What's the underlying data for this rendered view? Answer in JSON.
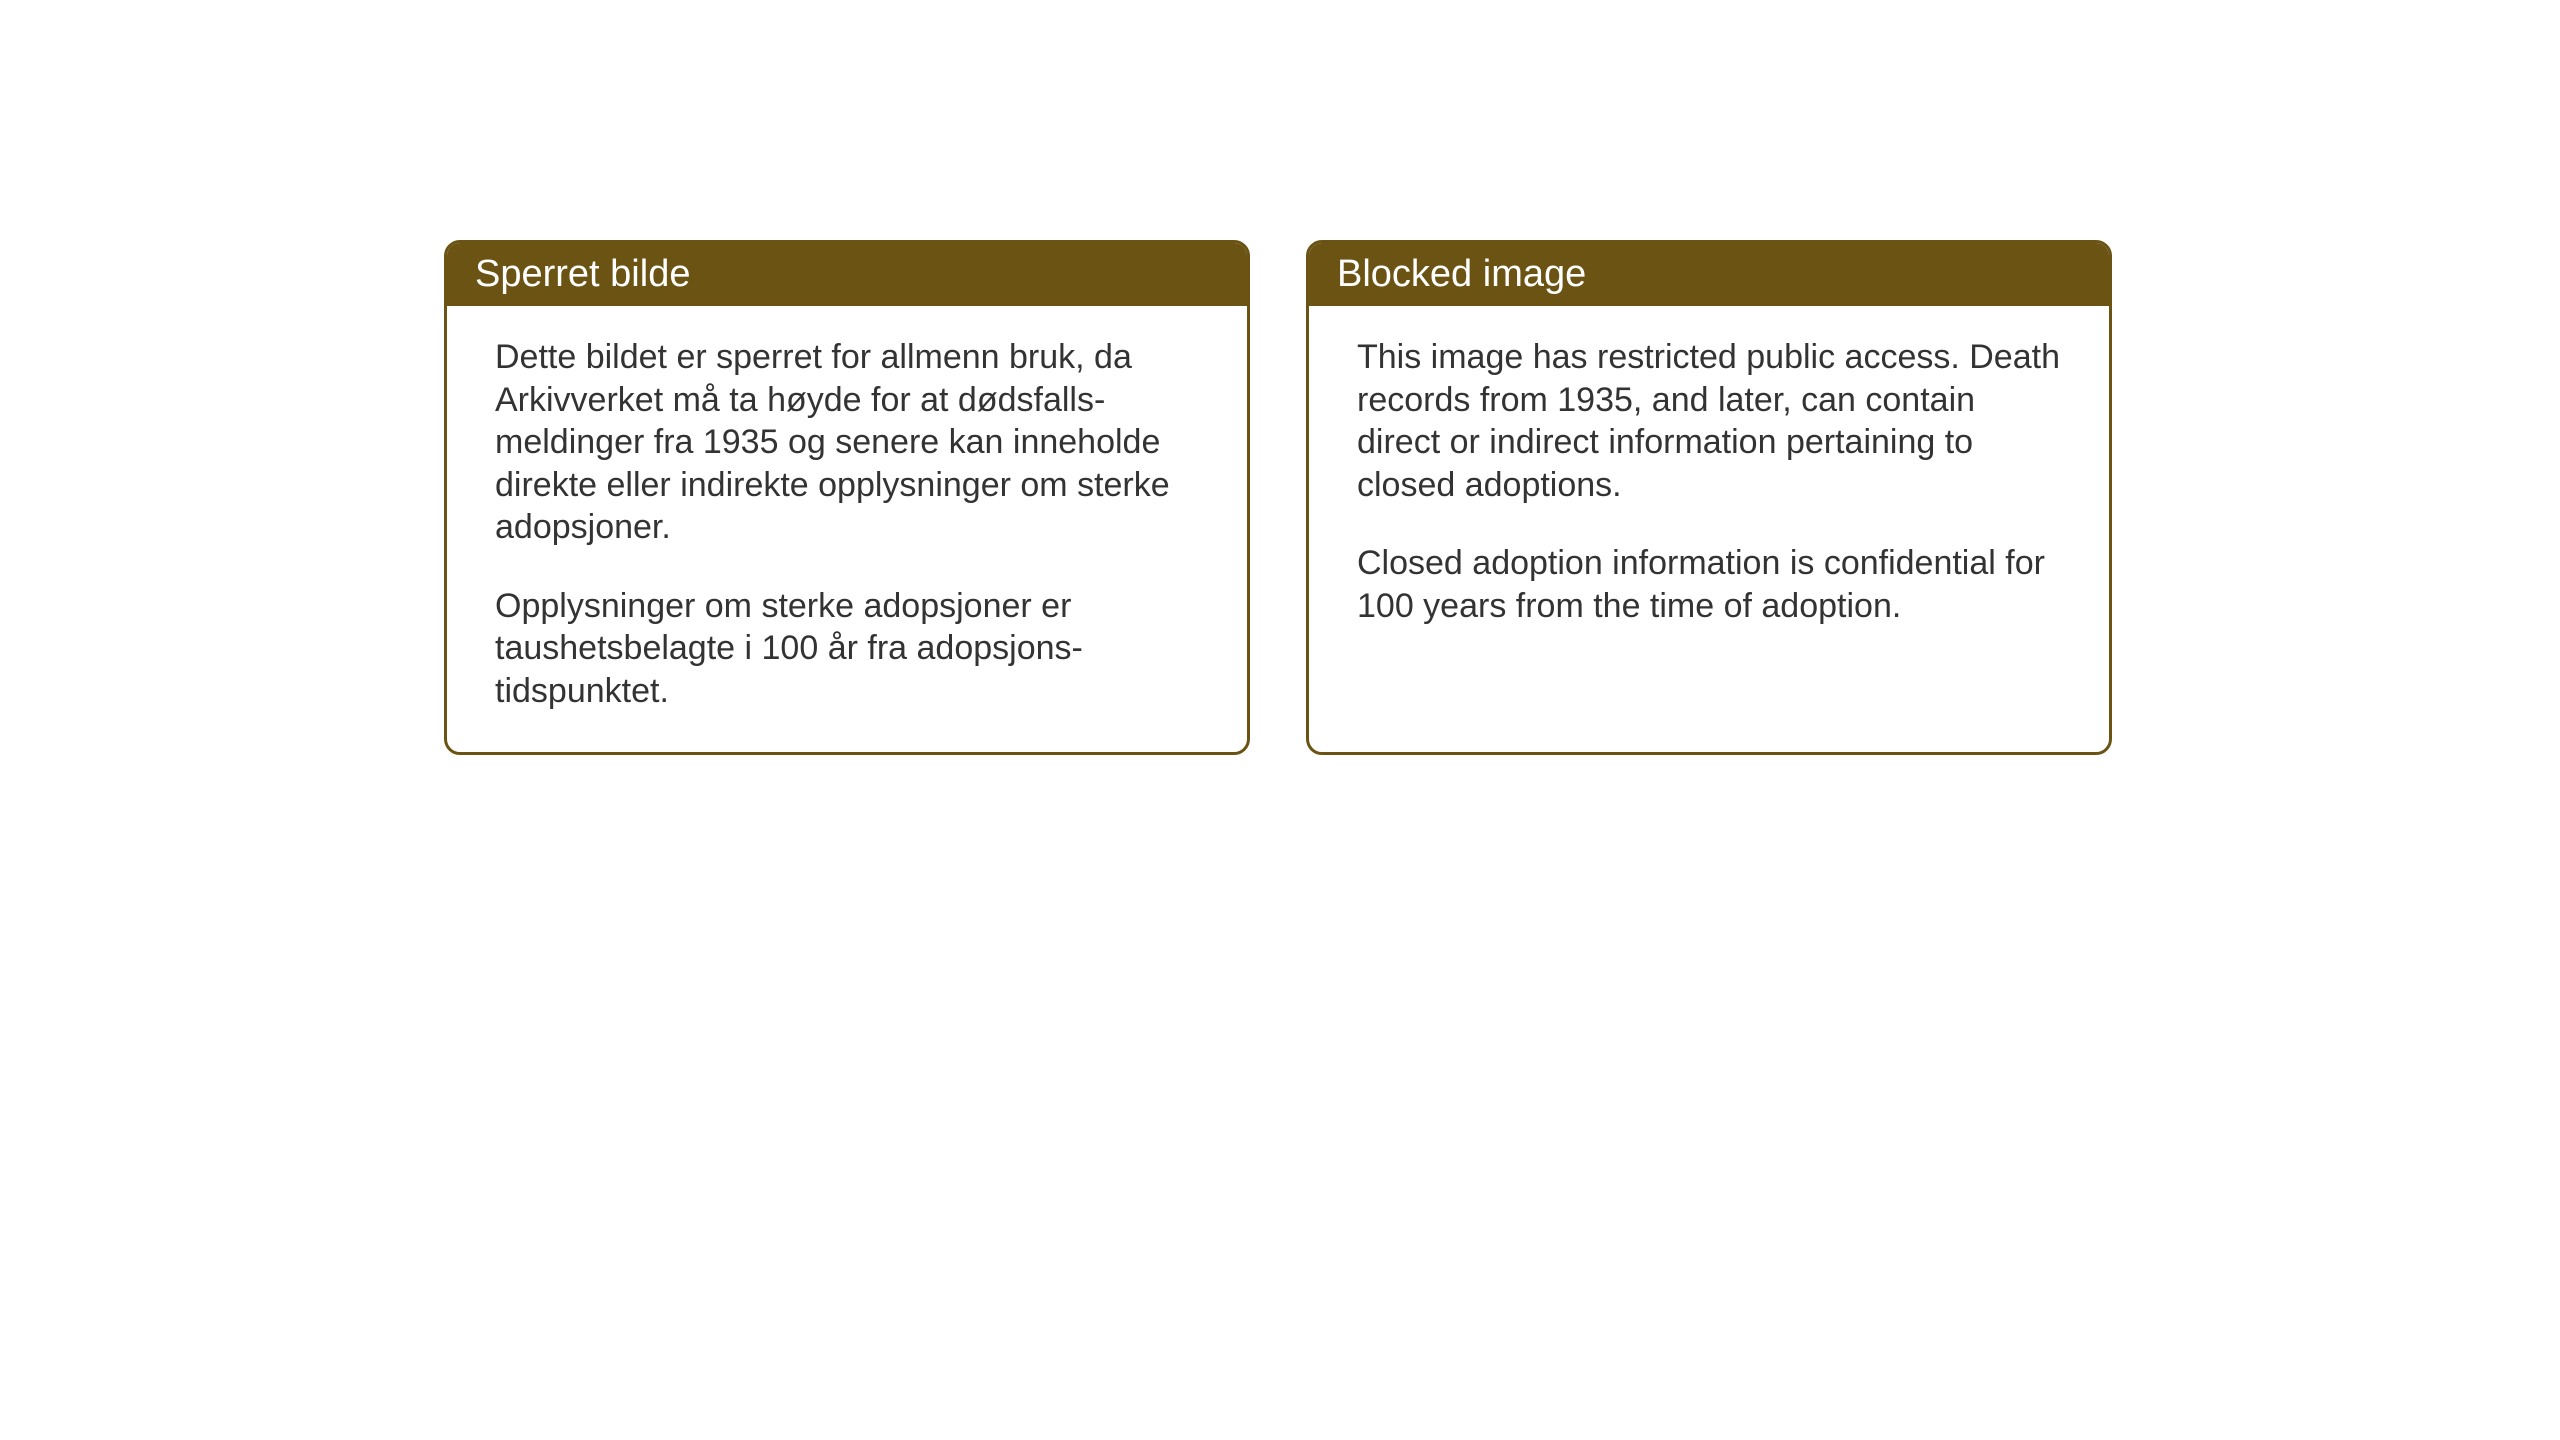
{
  "layout": {
    "background_color": "#ffffff",
    "box_border_color": "#6b5314",
    "header_background_color": "#6b5314",
    "header_text_color": "#ffffff",
    "body_text_color": "#333333",
    "border_radius": 16,
    "header_fontsize": 38,
    "body_fontsize": 34
  },
  "notices": {
    "norwegian": {
      "title": "Sperret bilde",
      "paragraph1": "Dette bildet er sperret for allmenn bruk, da Arkivverket må ta høyde for at dødsfalls-meldinger fra 1935 og senere kan inneholde direkte eller indirekte opplysninger om sterke adopsjoner.",
      "paragraph2": "Opplysninger om sterke adopsjoner er taushetsbelagte i 100 år fra adopsjons-tidspunktet."
    },
    "english": {
      "title": "Blocked image",
      "paragraph1": "This image has restricted public access. Death records from 1935, and later, can contain direct or indirect information pertaining to closed adoptions.",
      "paragraph2": "Closed adoption information is confidential for 100 years from the time of adoption."
    }
  }
}
